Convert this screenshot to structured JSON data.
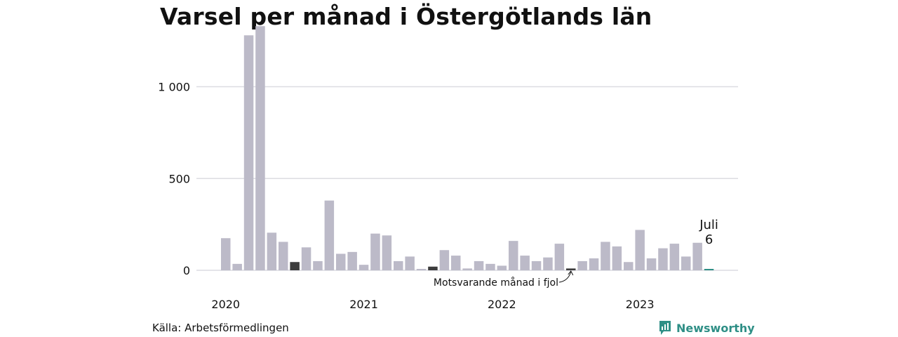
{
  "chart_data": {
    "type": "bar",
    "title": "Varsel per månad i Östergötlands län",
    "xlabel": "",
    "ylabel": "",
    "ylim": [
      0,
      1350
    ],
    "yticks": [
      0,
      500,
      1000
    ],
    "ytick_labels": [
      "0",
      "500",
      "1 000"
    ],
    "x_group_labels": [
      "2020",
      "2021",
      "2022",
      "2023"
    ],
    "categories": [
      "2020-01",
      "2020-02",
      "2020-03",
      "2020-04",
      "2020-05",
      "2020-06",
      "2020-07",
      "2020-08",
      "2020-09",
      "2020-10",
      "2020-11",
      "2020-12",
      "2021-01",
      "2021-02",
      "2021-03",
      "2021-04",
      "2021-05",
      "2021-06",
      "2021-07",
      "2021-08",
      "2021-09",
      "2021-10",
      "2021-11",
      "2021-12",
      "2022-01",
      "2022-02",
      "2022-03",
      "2022-04",
      "2022-05",
      "2022-06",
      "2022-07",
      "2022-08",
      "2022-09",
      "2022-10",
      "2022-11",
      "2022-12",
      "2023-01",
      "2023-02",
      "2023-03",
      "2023-04",
      "2023-05",
      "2023-06",
      "2023-07"
    ],
    "values": [
      175,
      35,
      1280,
      1330,
      205,
      155,
      45,
      125,
      50,
      380,
      90,
      100,
      30,
      200,
      190,
      50,
      75,
      5,
      20,
      110,
      80,
      10,
      50,
      35,
      25,
      160,
      80,
      50,
      70,
      145,
      10,
      50,
      65,
      155,
      130,
      45,
      220,
      65,
      120,
      145,
      75,
      150,
      6
    ],
    "same_month_indices": [
      6,
      18,
      30
    ],
    "highlight_index": 42,
    "highlight_label": "Juli",
    "highlight_value_label": "6",
    "annotation": "Motsvarande månad i fjol",
    "grid": true,
    "colors": {
      "bar": "#bcbac8",
      "same_month": "#3d3d3d",
      "highlight": "#2f8f86",
      "grid": "#dcdce2"
    }
  },
  "footer": {
    "source": "Källa: Arbetsförmedlingen",
    "brand": "Newsworthy",
    "brand_icon": "newsworthy-logo-icon"
  }
}
